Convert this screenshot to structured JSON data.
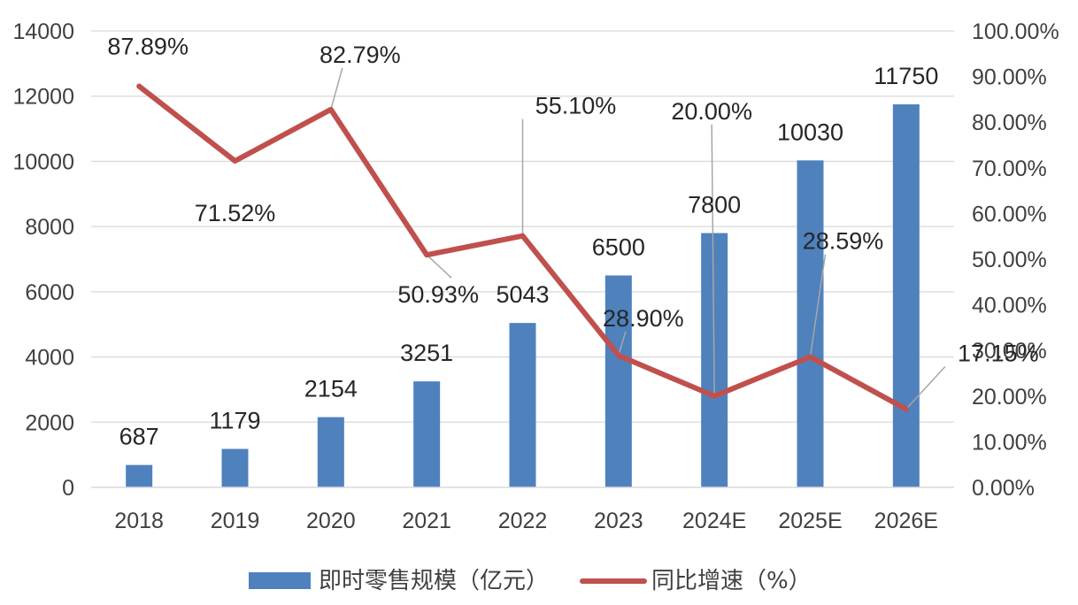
{
  "chart_data": {
    "type": "bar+line",
    "title": "",
    "categories": [
      "2018",
      "2019",
      "2020",
      "2021",
      "2022",
      "2023",
      "2024E",
      "2025E",
      "2026E"
    ],
    "series": [
      {
        "name": "即时零售规模（亿元）",
        "type": "bar",
        "axis": "left",
        "values": [
          687,
          1179,
          2154,
          3251,
          5043,
          6500,
          7800,
          10030,
          11750
        ],
        "labels": [
          "687",
          "1179",
          "2154",
          "3251",
          "5043",
          "6500",
          "7800",
          "10030",
          "11750"
        ],
        "color": "#4F81BD"
      },
      {
        "name": "同比增速（%）",
        "type": "line",
        "axis": "right",
        "values": [
          87.89,
          71.52,
          82.79,
          50.93,
          55.1,
          28.9,
          20.0,
          28.59,
          17.15
        ],
        "labels": [
          "87.89%",
          "71.52%",
          "82.79%",
          "50.93%",
          "55.10%",
          "28.90%",
          "20.00%",
          "28.59%",
          "17.15%"
        ],
        "color": "#C0504D"
      }
    ],
    "y_left": {
      "min": 0,
      "max": 14000,
      "step": 2000,
      "ticks": [
        "0",
        "2000",
        "4000",
        "6000",
        "8000",
        "10000",
        "12000",
        "14000"
      ]
    },
    "y_right": {
      "min": 0,
      "max": 100,
      "step": 10,
      "ticks": [
        "0.00%",
        "10.00%",
        "20.00%",
        "30.00%",
        "40.00%",
        "50.00%",
        "60.00%",
        "70.00%",
        "80.00%",
        "90.00%",
        "100.00%"
      ]
    },
    "grid": true,
    "legend": "bottom",
    "gridColor": "#D9D9D9",
    "leaderColor": "#A6A6A6"
  }
}
